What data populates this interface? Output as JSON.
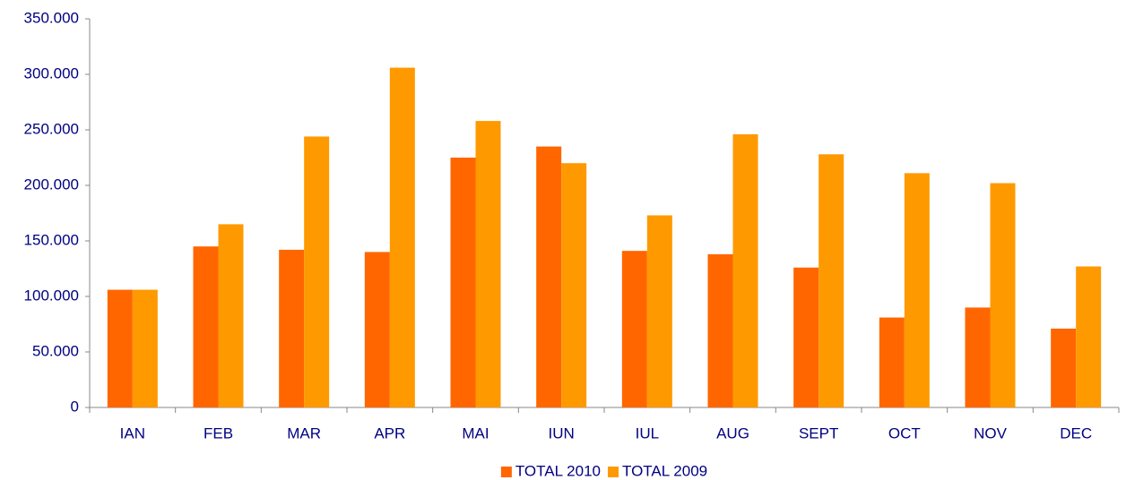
{
  "chart_data": {
    "type": "bar",
    "categories": [
      "IAN",
      "FEB",
      "MAR",
      "APR",
      "MAI",
      "IUN",
      "IUL",
      "AUG",
      "SEPT",
      "OCT",
      "NOV",
      "DEC"
    ],
    "series": [
      {
        "name": "TOTAL 2010",
        "color": "#ff6600",
        "values": [
          106000,
          145000,
          142000,
          140000,
          225000,
          235000,
          141000,
          138000,
          126000,
          81000,
          90000,
          71000
        ]
      },
      {
        "name": "TOTAL 2009",
        "color": "#ff9900",
        "values": [
          106000,
          165000,
          244000,
          306000,
          258000,
          220000,
          173000,
          246000,
          228000,
          211000,
          202000,
          127000
        ]
      }
    ],
    "ylim": [
      0,
      350000
    ],
    "yticks": [
      0,
      {
        "value": 50000,
        "label": "50.000"
      },
      {
        "value": 100000,
        "label": "100.000"
      },
      {
        "value": 150000,
        "label": "150.000"
      },
      {
        "value": 200000,
        "label": "200.000"
      },
      {
        "value": 250000,
        "label": "250.000"
      },
      {
        "value": 300000,
        "label": "300.000"
      },
      {
        "value": 350000,
        "label": "350.000"
      }
    ],
    "grid": false,
    "legend": "bottom"
  }
}
